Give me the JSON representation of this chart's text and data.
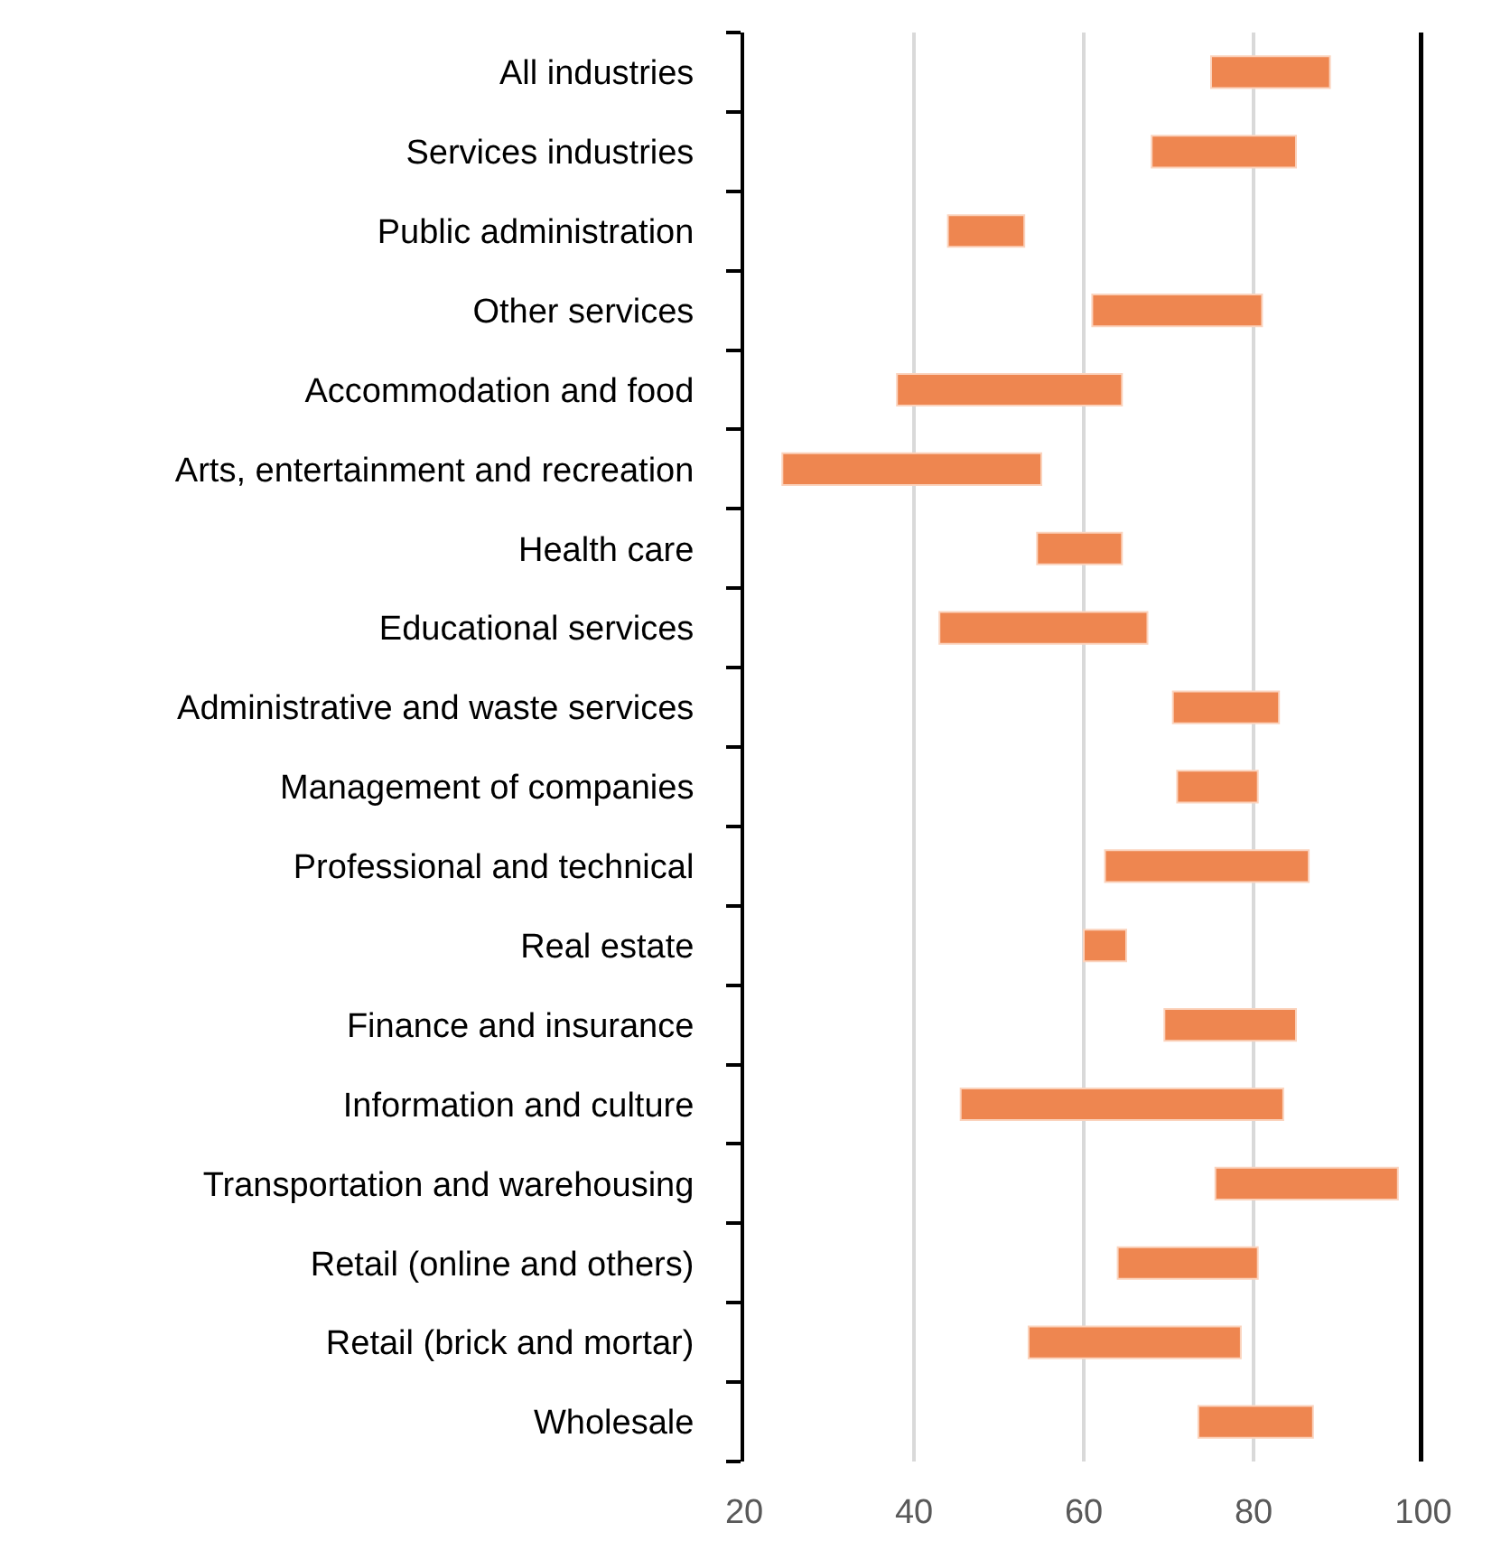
{
  "chart_data": {
    "type": "bar",
    "orientation": "horizontal",
    "categories": [
      "All industries",
      "Services industries",
      "Public administration",
      "Other services",
      "Accommodation and food",
      "Arts, entertainment and recreation",
      "Health care",
      "Educational services",
      "Administrative and waste services",
      "Management of companies",
      "Professional and technical",
      "Real estate",
      "Finance and insurance",
      "Information and culture",
      "Transportation and warehousing",
      "Retail (online and others)",
      "Retail (brick and mortar)",
      "Wholesale"
    ],
    "base": [
      75,
      68,
      44,
      61,
      38,
      24.5,
      54.5,
      43,
      70.5,
      71,
      62.5,
      60,
      69.5,
      45.5,
      75.5,
      64,
      53.5,
      73.5
    ],
    "values": [
      14,
      17,
      9,
      20,
      26.5,
      30.5,
      10,
      24.5,
      12.5,
      9.5,
      24,
      5,
      15.5,
      38,
      21.5,
      16.5,
      25,
      13.5
    ],
    "color": "#ee8650",
    "xlim": [
      20,
      100
    ],
    "xticks": [
      20,
      40,
      60,
      80,
      100
    ],
    "grid": "x",
    "ref_lines": [
      {
        "axis": "x",
        "value": 100,
        "color": "#000000"
      }
    ]
  }
}
